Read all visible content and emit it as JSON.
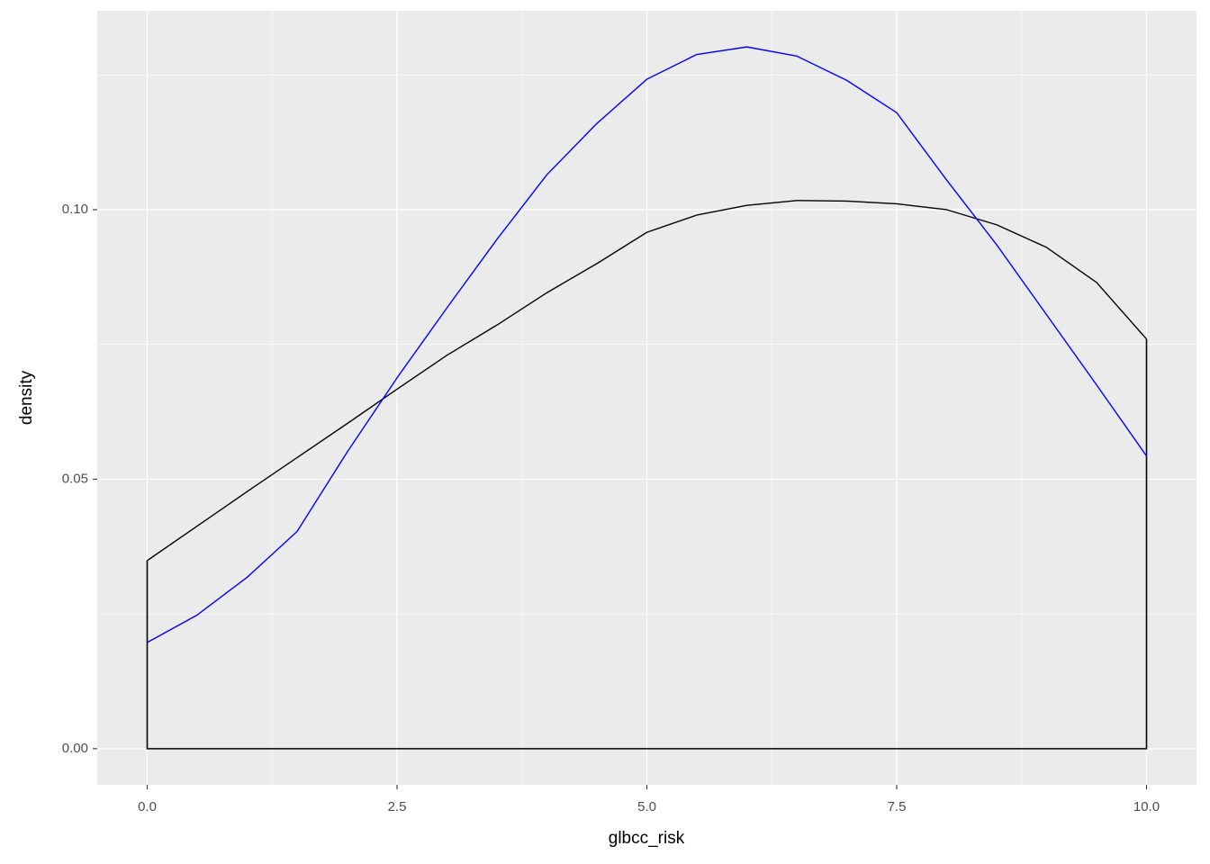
{
  "chart_data": {
    "type": "density",
    "x_label": "glbcc_risk",
    "y_label": "density",
    "x": [
      0,
      0.5,
      1,
      1.5,
      2,
      2.5,
      3,
      3.5,
      4,
      4.5,
      5,
      5.5,
      6,
      6.5,
      7,
      7.5,
      8,
      8.5,
      9,
      9.5,
      10
    ],
    "series": [
      {
        "color": "#000000",
        "filled_to_zero": true,
        "values": [
          0.0349,
          0.0413,
          0.0477,
          0.054,
          0.0603,
          0.0667,
          0.073,
          0.0786,
          0.0846,
          0.09,
          0.0958,
          0.099,
          0.1008,
          0.1017,
          0.1016,
          0.1011,
          0.1,
          0.0972,
          0.093,
          0.0865,
          0.076
        ]
      },
      {
        "color": "#0000ff",
        "filled_to_zero": false,
        "values": [
          0.0197,
          0.0248,
          0.0318,
          0.0403,
          0.055,
          0.0688,
          0.0818,
          0.0945,
          0.1065,
          0.116,
          0.1242,
          0.1288,
          0.1302,
          0.1285,
          0.124,
          0.118,
          0.1055,
          0.0935,
          0.0805,
          0.0675,
          0.0543
        ]
      }
    ],
    "xlim": [
      -0.5,
      10.5
    ],
    "ylim": [
      -0.0067,
      0.1369
    ],
    "xticks": [
      {
        "value": 0,
        "label": "0.0"
      },
      2.5,
      {
        "value": 5,
        "label": "5.0"
      },
      7.5,
      {
        "value": 10,
        "label": "10.0"
      }
    ],
    "yticks": [
      {
        "value": 0,
        "label": "0.00"
      },
      0.05,
      {
        "value": 0.1,
        "label": "0.10"
      }
    ],
    "grid": true,
    "minor_grid": true,
    "panel_color": "#ebebeb"
  }
}
